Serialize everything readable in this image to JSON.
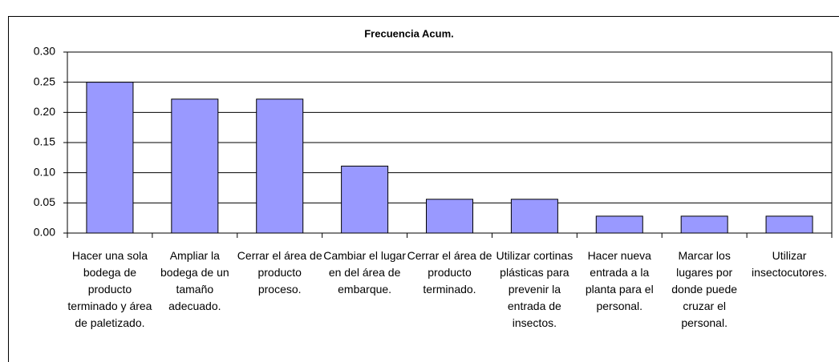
{
  "chart_data": {
    "type": "bar",
    "title": "Frecuencia Acum.",
    "categories": [
      "Hacer una sola bodega de producto terminado y área de paletizado.",
      "Ampliar la bodega de un tamaño adecuado.",
      "Cerrar el área de producto proceso.",
      "Cambiar el lugar en del área de embarque.",
      "Cerrar el área de producto terminado.",
      "Utilizar cortinas plásticas para prevenir la entrada de insectos.",
      "Hacer nueva entrada a la planta para el personal.",
      "Marcar los lugares por donde puede cruzar el personal.",
      "Utilizar insectocutores."
    ],
    "values": [
      0.25,
      0.222,
      0.222,
      0.111,
      0.056,
      0.056,
      0.028,
      0.028,
      0.028
    ],
    "color": "#9999ff",
    "ylim": [
      0,
      0.3
    ],
    "yticks": [
      {
        "value": 0,
        "label": "0.00"
      },
      {
        "value": 0.05,
        "label": "0.05"
      },
      {
        "value": 0.1,
        "label": "0.10"
      },
      {
        "value": 0.15,
        "label": "0.15"
      },
      {
        "value": 0.2,
        "label": "0.20"
      },
      {
        "value": 0.25,
        "label": "0.25"
      },
      {
        "value": 0.3,
        "label": "0.30"
      }
    ],
    "grid": true
  }
}
